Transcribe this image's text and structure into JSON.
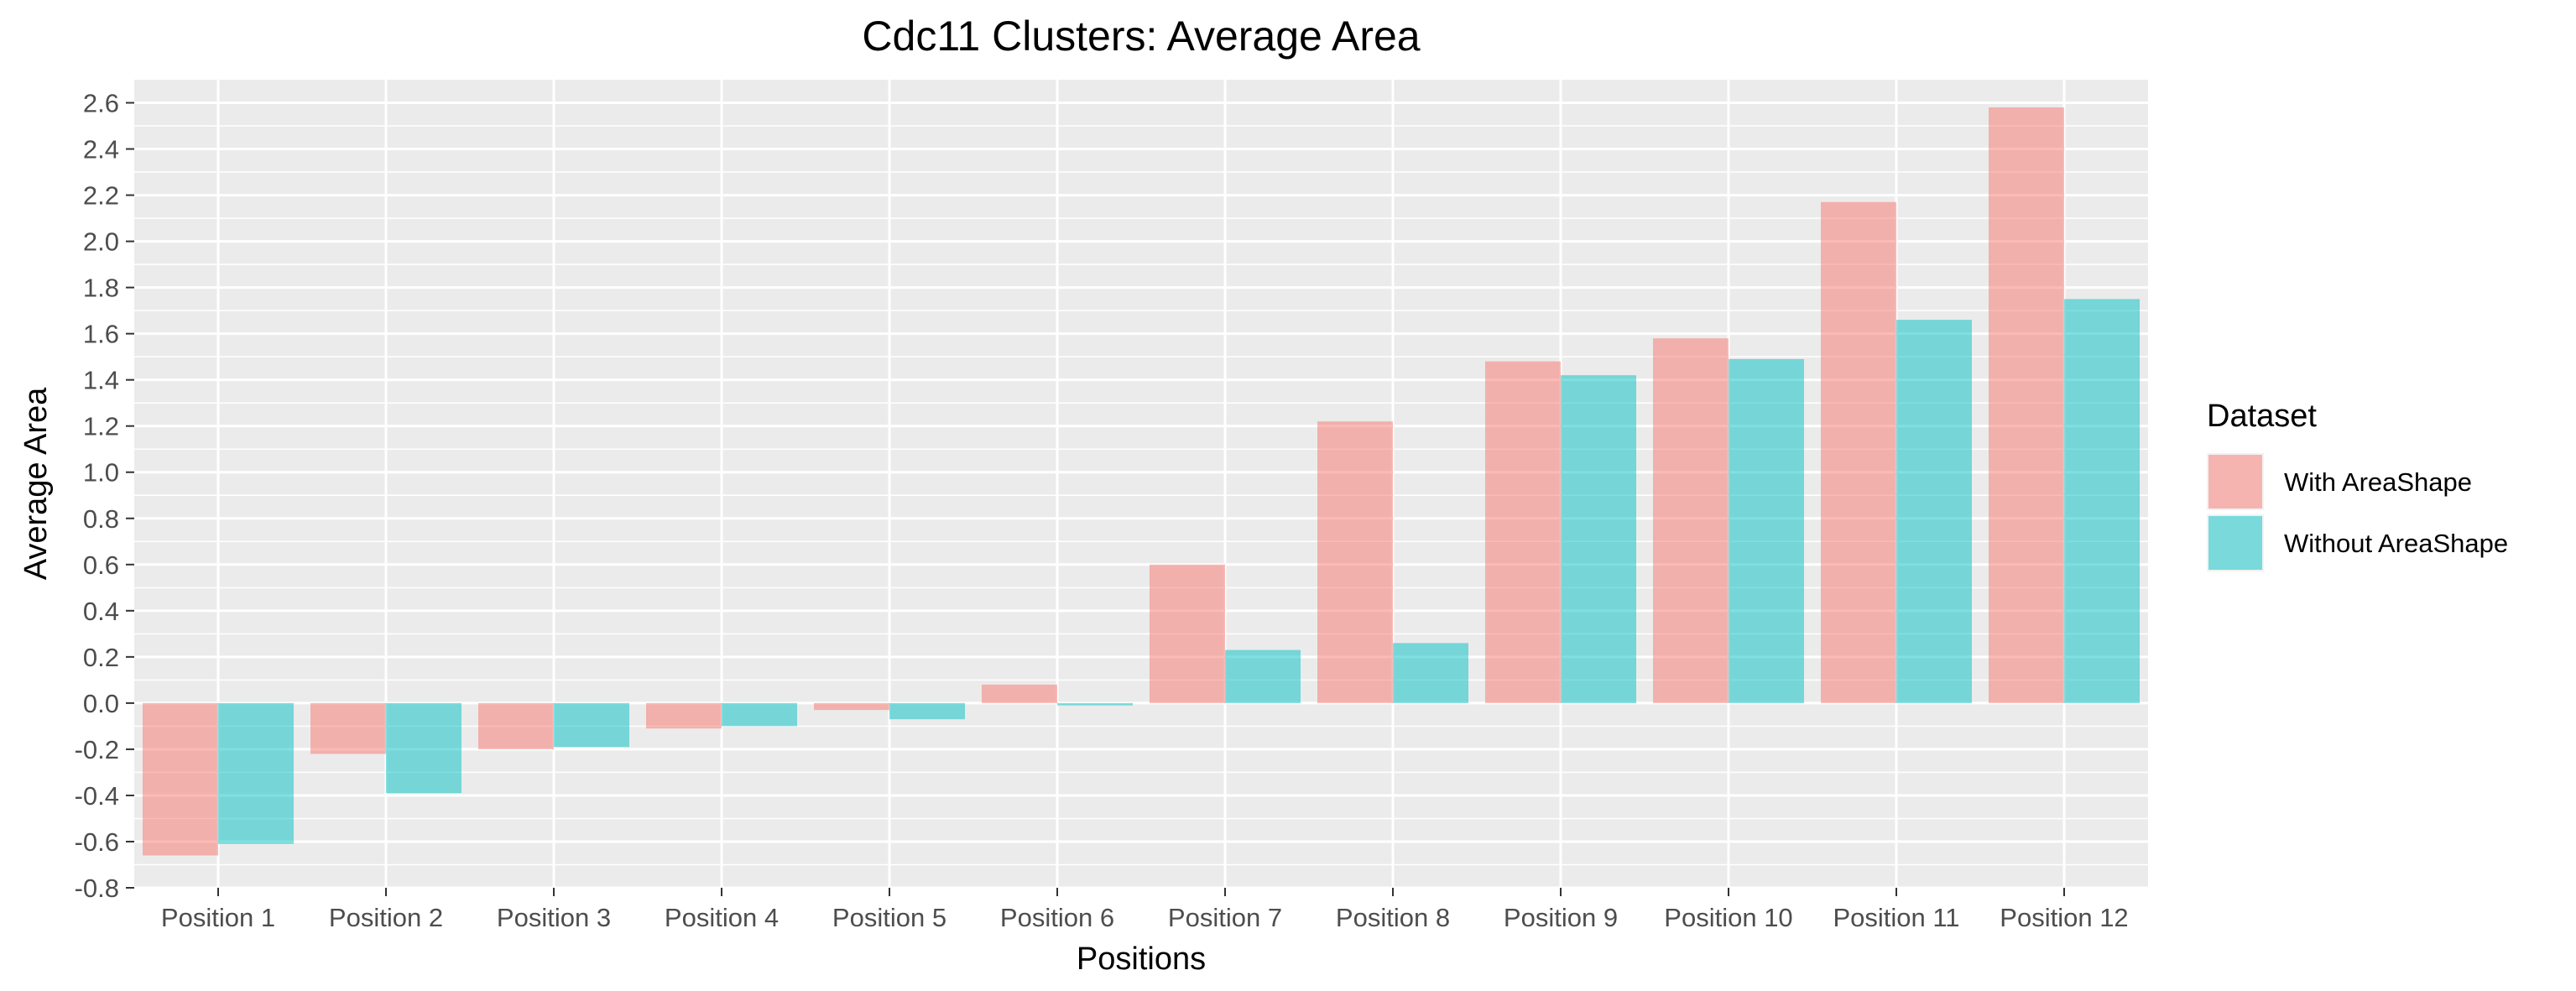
{
  "chart_data": {
    "type": "bar",
    "title": "Cdc11 Clusters: Average Area",
    "xlabel": "Positions",
    "ylabel": "Average Area",
    "ylim": [
      -0.8,
      2.7
    ],
    "yticks": [
      "-0.8",
      "-0.6",
      "-0.4",
      "-0.2",
      "0.0",
      "0.2",
      "0.4",
      "0.6",
      "0.8",
      "1.0",
      "1.2",
      "1.4",
      "1.6",
      "1.8",
      "2.0",
      "2.2",
      "2.4",
      "2.6"
    ],
    "categories": [
      "Position 1",
      "Position 2",
      "Position 3",
      "Position 4",
      "Position 5",
      "Position 6",
      "Position 7",
      "Position 8",
      "Position 9",
      "Position 10",
      "Position 11",
      "Position 12"
    ],
    "series": [
      {
        "name": "With AreaShape",
        "color": "#F8766D",
        "values": [
          -0.66,
          -0.22,
          -0.2,
          -0.11,
          -0.03,
          0.08,
          0.6,
          1.22,
          1.48,
          1.58,
          2.17,
          2.58
        ]
      },
      {
        "name": "Without AreaShape",
        "color": "#00BFC4",
        "values": [
          -0.61,
          -0.39,
          -0.19,
          -0.1,
          -0.07,
          -0.01,
          0.23,
          0.26,
          1.42,
          1.49,
          1.66,
          1.75
        ]
      }
    ],
    "legend": {
      "title": "Dataset",
      "position": "right"
    },
    "grid": true
  }
}
